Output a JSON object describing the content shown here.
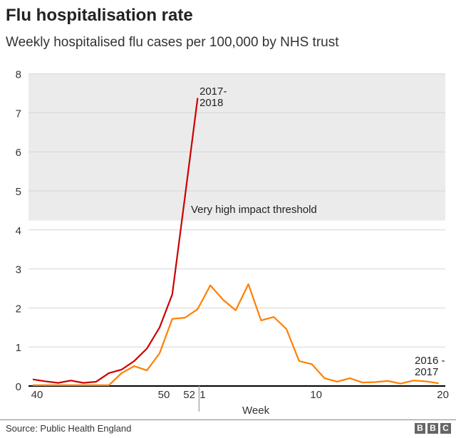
{
  "title": "Flu hospitalisation rate",
  "subtitle": "Weekly hospitalised flu cases per 100,000 by NHS trust",
  "source": "Source: Public Health England",
  "logo": "BBC",
  "chart_data": {
    "type": "line",
    "title": "Flu hospitalisation rate",
    "xlabel": "Week",
    "ylabel": "",
    "ylim": [
      0,
      8
    ],
    "yticks": [
      "0",
      "1",
      "2",
      "3",
      "4",
      "5",
      "6",
      "7",
      "8"
    ],
    "xticks": [
      "40",
      "50",
      "52",
      "1",
      "10",
      "20"
    ],
    "grid": true,
    "weeks": [
      40,
      41,
      42,
      43,
      44,
      45,
      46,
      47,
      48,
      49,
      50,
      51,
      52,
      1,
      2,
      3,
      4,
      5,
      6,
      7,
      8,
      9,
      10,
      11,
      12,
      13,
      14,
      15,
      16,
      17,
      18,
      19,
      20
    ],
    "threshold": {
      "label": "Very high impact threshold",
      "value": 4.24,
      "color": "#ebebeb"
    },
    "series": [
      {
        "name": "2016-2017",
        "label_line1": "2016 -",
        "label_line2": "2017",
        "color": "#ff7f00",
        "values": [
          0.02,
          0.02,
          0.02,
          0.02,
          0.02,
          0.02,
          0.02,
          0.33,
          0.51,
          0.4,
          0.84,
          1.72,
          1.75,
          1.97,
          2.58,
          2.21,
          1.94,
          2.61,
          1.68,
          1.77,
          1.46,
          0.64,
          0.56,
          0.2,
          0.11,
          0.2,
          0.09,
          0.1,
          0.13,
          0.06,
          0.14,
          0.12,
          0.07
        ]
      },
      {
        "name": "2017-2018",
        "label_line1": "2017-",
        "label_line2": "2018",
        "color": "#cc0000",
        "values": [
          0.17,
          0.12,
          0.08,
          0.14,
          0.08,
          0.11,
          0.33,
          0.42,
          0.64,
          0.96,
          1.5,
          2.35,
          4.85,
          7.38
        ]
      }
    ]
  }
}
